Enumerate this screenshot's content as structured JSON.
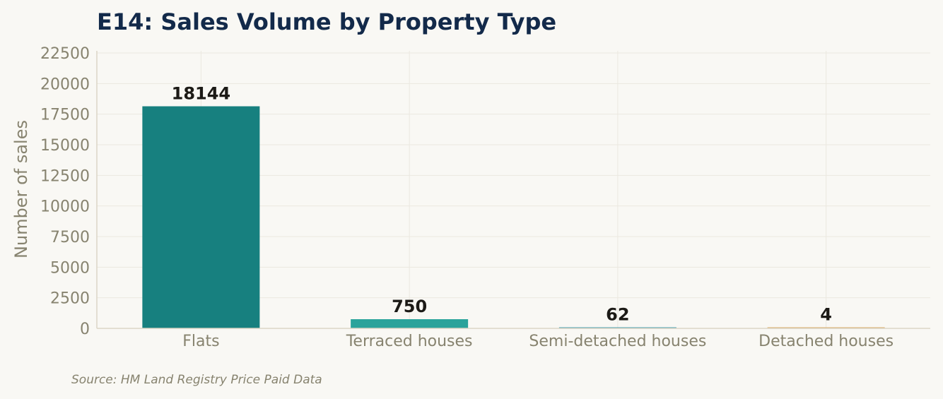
{
  "chart_data": {
    "type": "bar",
    "title": "E14: Sales Volume by Property Type",
    "xlabel": "",
    "ylabel": "Number of sales",
    "categories": [
      "Flats",
      "Terraced houses",
      "Semi-detached houses",
      "Detached houses"
    ],
    "values": [
      18144,
      750,
      62,
      4
    ],
    "data_labels": [
      "18144",
      "750",
      "62",
      "4"
    ],
    "colors": [
      "#17807f",
      "#2aa39b",
      "#2f93a8",
      "#d8a356"
    ],
    "ylim": [
      0,
      22500
    ],
    "yticks": [
      0,
      2500,
      5000,
      7500,
      10000,
      12500,
      15000,
      17500,
      20000,
      22500
    ],
    "grid": true,
    "legend": "none",
    "source": "Source: HM Land Registry Price Paid Data"
  }
}
